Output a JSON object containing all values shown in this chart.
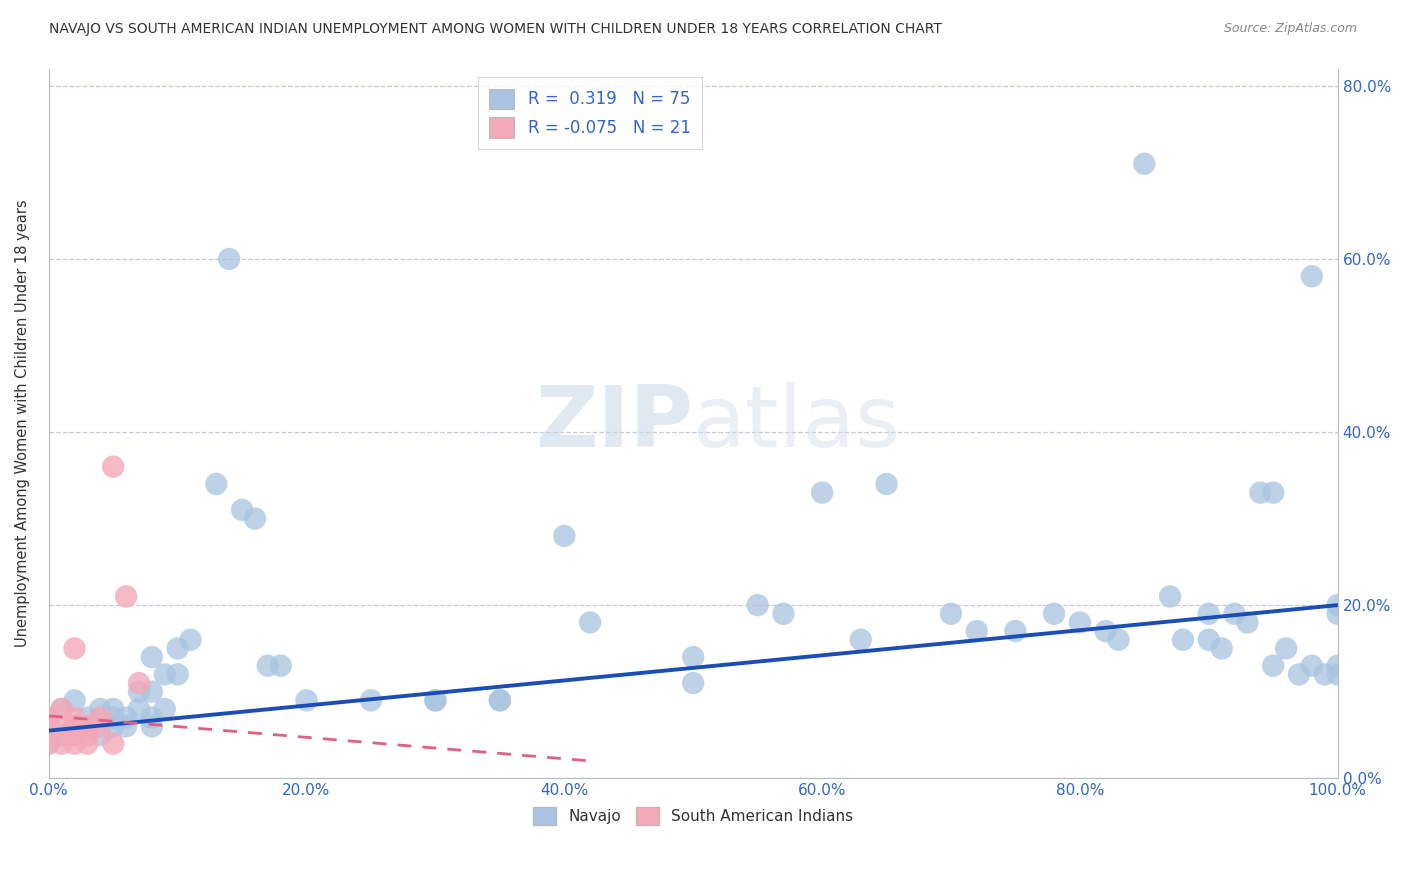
{
  "title": "NAVAJO VS SOUTH AMERICAN INDIAN UNEMPLOYMENT AMONG WOMEN WITH CHILDREN UNDER 18 YEARS CORRELATION CHART",
  "source": "Source: ZipAtlas.com",
  "ylabel": "Unemployment Among Women with Children Under 18 years",
  "navajo_R": 0.319,
  "navajo_N": 75,
  "sa_R": -0.075,
  "sa_N": 21,
  "navajo_color": "#a8c4e0",
  "sa_color": "#f4a8b8",
  "navajo_line_color": "#1a4db5",
  "sa_line_color": "#e06080",
  "bg_color": "#ffffff",
  "grid_color": "#c8c8d8",
  "watermark_zip": "ZIP",
  "watermark_atlas": "atlas",
  "xlim": [
    0,
    1.0
  ],
  "ylim": [
    0,
    0.82
  ],
  "navajo_x": [
    0.0,
    0.0,
    0.01,
    0.01,
    0.02,
    0.02,
    0.02,
    0.03,
    0.03,
    0.04,
    0.04,
    0.05,
    0.05,
    0.05,
    0.06,
    0.06,
    0.07,
    0.07,
    0.08,
    0.08,
    0.08,
    0.08,
    0.09,
    0.09,
    0.1,
    0.1,
    0.11,
    0.13,
    0.14,
    0.15,
    0.16,
    0.17,
    0.18,
    0.2,
    0.25,
    0.3,
    0.3,
    0.35,
    0.35,
    0.4,
    0.42,
    0.5,
    0.5,
    0.55,
    0.57,
    0.6,
    0.63,
    0.65,
    0.7,
    0.72,
    0.75,
    0.78,
    0.8,
    0.82,
    0.83,
    0.85,
    0.87,
    0.88,
    0.9,
    0.9,
    0.91,
    0.92,
    0.93,
    0.94,
    0.95,
    0.95,
    0.96,
    0.97,
    0.98,
    0.98,
    0.99,
    1.0,
    1.0,
    1.0,
    1.0
  ],
  "navajo_y": [
    0.04,
    0.07,
    0.05,
    0.08,
    0.06,
    0.09,
    0.05,
    0.07,
    0.06,
    0.08,
    0.05,
    0.07,
    0.06,
    0.08,
    0.07,
    0.06,
    0.1,
    0.08,
    0.14,
    0.1,
    0.07,
    0.06,
    0.12,
    0.08,
    0.15,
    0.12,
    0.16,
    0.34,
    0.6,
    0.31,
    0.3,
    0.13,
    0.13,
    0.09,
    0.09,
    0.09,
    0.09,
    0.09,
    0.09,
    0.28,
    0.18,
    0.14,
    0.11,
    0.2,
    0.19,
    0.33,
    0.16,
    0.34,
    0.19,
    0.17,
    0.17,
    0.19,
    0.18,
    0.17,
    0.16,
    0.71,
    0.21,
    0.16,
    0.19,
    0.16,
    0.15,
    0.19,
    0.18,
    0.33,
    0.33,
    0.13,
    0.15,
    0.12,
    0.58,
    0.13,
    0.12,
    0.2,
    0.19,
    0.12,
    0.13
  ],
  "sa_x": [
    0.0,
    0.0,
    0.0,
    0.0,
    0.01,
    0.01,
    0.01,
    0.02,
    0.02,
    0.02,
    0.02,
    0.02,
    0.03,
    0.03,
    0.03,
    0.04,
    0.04,
    0.05,
    0.05,
    0.06,
    0.07
  ],
  "sa_y": [
    0.04,
    0.06,
    0.07,
    0.05,
    0.04,
    0.06,
    0.08,
    0.04,
    0.05,
    0.06,
    0.07,
    0.15,
    0.04,
    0.05,
    0.06,
    0.06,
    0.07,
    0.36,
    0.04,
    0.21,
    0.11
  ],
  "nav_line_x0": 0.0,
  "nav_line_y0": 0.055,
  "nav_line_x1": 1.0,
  "nav_line_y1": 0.2,
  "sa_line_x0": 0.0,
  "sa_line_y0": 0.072,
  "sa_line_x1": 0.42,
  "sa_line_y1": 0.02
}
